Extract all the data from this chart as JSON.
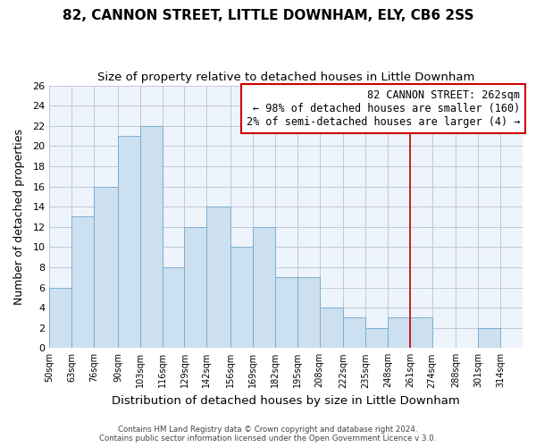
{
  "title": "82, CANNON STREET, LITTLE DOWNHAM, ELY, CB6 2SS",
  "subtitle": "Size of property relative to detached houses in Little Downham",
  "xlabel": "Distribution of detached houses by size in Little Downham",
  "ylabel": "Number of detached properties",
  "footer_line1": "Contains HM Land Registry data © Crown copyright and database right 2024.",
  "footer_line2": "Contains public sector information licensed under the Open Government Licence v 3.0.",
  "bin_labels": [
    "50sqm",
    "63sqm",
    "76sqm",
    "90sqm",
    "103sqm",
    "116sqm",
    "129sqm",
    "142sqm",
    "156sqm",
    "169sqm",
    "182sqm",
    "195sqm",
    "208sqm",
    "222sqm",
    "235sqm",
    "248sqm",
    "261sqm",
    "274sqm",
    "288sqm",
    "301sqm",
    "314sqm"
  ],
  "bin_edges": [
    50,
    63,
    76,
    90,
    103,
    116,
    129,
    142,
    156,
    169,
    182,
    195,
    208,
    222,
    235,
    248,
    261,
    274,
    288,
    301,
    314
  ],
  "counts": [
    6,
    13,
    16,
    21,
    22,
    8,
    12,
    14,
    10,
    12,
    7,
    7,
    4,
    3,
    2,
    3,
    3,
    0,
    0,
    2,
    0
  ],
  "bar_color": "#cce0f0",
  "bar_edgecolor": "#7aaed0",
  "property_size": 262,
  "vline_color": "#cc0000",
  "vline_x": 261,
  "annotation_line1": "82 CANNON STREET: 262sqm",
  "annotation_line2": "← 98% of detached houses are smaller (160)",
  "annotation_line3": "2% of semi-detached houses are larger (4) →",
  "annotation_fontsize": 8.5,
  "ylim": [
    0,
    26
  ],
  "yticks": [
    0,
    2,
    4,
    6,
    8,
    10,
    12,
    14,
    16,
    18,
    20,
    22,
    24,
    26
  ],
  "background_color": "#ffffff",
  "plot_bg_color": "#eef4fb",
  "grid_color": "#c0c8d8",
  "title_fontsize": 11,
  "subtitle_fontsize": 9.5,
  "xlabel_fontsize": 9.5,
  "ylabel_fontsize": 9
}
